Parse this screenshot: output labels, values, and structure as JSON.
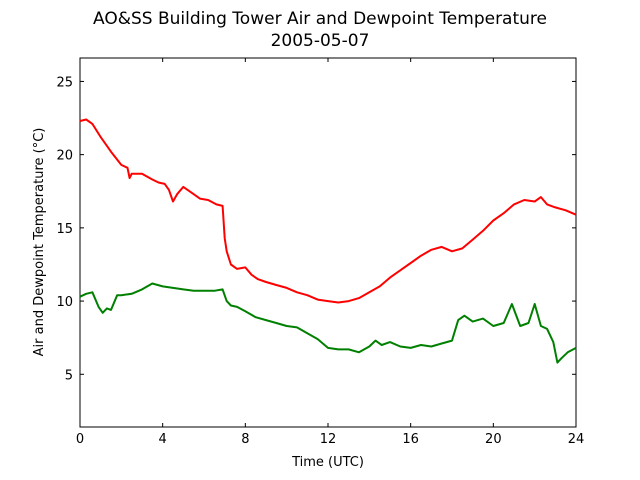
{
  "chart_data": {
    "type": "line",
    "title": "AO&SS Building Tower Air and Dewpoint Temperature",
    "subtitle": "2005-05-07",
    "xlabel": "Time (UTC)",
    "ylabel": "Air and Dewpoint Temperature (°C)",
    "xlim": [
      0,
      24
    ],
    "ylim": [
      1.4,
      26.6
    ],
    "xticks": [
      0,
      4,
      8,
      12,
      16,
      20,
      24
    ],
    "yticks": [
      5,
      10,
      15,
      20,
      25
    ],
    "grid": false,
    "legend": "none",
    "series": [
      {
        "color": "#ff0000",
        "x": [
          0,
          0.3,
          0.6,
          1,
          1.5,
          2,
          2.3,
          2.4,
          2.5,
          3,
          3.5,
          3.8,
          4.1,
          4.3,
          4.5,
          4.7,
          5,
          5.4,
          5.8,
          6.2,
          6.6,
          6.9,
          7.0,
          7.1,
          7.3,
          7.6,
          8,
          8.3,
          8.6,
          9,
          9.5,
          10,
          10.5,
          11,
          11.5,
          12,
          12.5,
          13,
          13.5,
          14,
          14.5,
          15,
          15.5,
          16,
          16.5,
          17,
          17.5,
          18,
          18.5,
          19,
          19.5,
          20,
          20.5,
          21,
          21.5,
          22,
          22.3,
          22.6,
          23,
          23.5,
          24
        ],
        "values": [
          22.3,
          22.4,
          22.1,
          21.2,
          20.2,
          19.3,
          19.1,
          18.4,
          18.7,
          18.7,
          18.3,
          18.1,
          18.0,
          17.6,
          16.8,
          17.3,
          17.8,
          17.4,
          17.0,
          16.9,
          16.6,
          16.5,
          14.3,
          13.4,
          12.5,
          12.2,
          12.3,
          11.8,
          11.5,
          11.3,
          11.1,
          10.9,
          10.6,
          10.4,
          10.1,
          10.0,
          9.9,
          10.0,
          10.2,
          10.6,
          11.0,
          11.6,
          12.1,
          12.6,
          13.1,
          13.5,
          13.7,
          13.4,
          13.6,
          14.2,
          14.8,
          15.5,
          16.0,
          16.6,
          16.9,
          16.8,
          17.1,
          16.6,
          16.4,
          16.2,
          15.9
        ]
      },
      {
        "color": "#008000",
        "x": [
          0,
          0.3,
          0.6,
          0.9,
          1.1,
          1.3,
          1.5,
          1.8,
          2,
          2.5,
          3,
          3.5,
          4,
          4.5,
          5,
          5.5,
          6,
          6.5,
          6.9,
          7.1,
          7.3,
          7.6,
          8,
          8.5,
          9,
          9.5,
          10,
          10.5,
          11,
          11.5,
          12,
          12.5,
          13,
          13.5,
          14,
          14.3,
          14.6,
          15,
          15.5,
          16,
          16.5,
          17,
          17.5,
          18,
          18.3,
          18.6,
          19,
          19.5,
          20,
          20.5,
          20.9,
          21.3,
          21.7,
          22,
          22.3,
          22.6,
          22.9,
          23.1,
          23.3,
          23.6,
          24
        ],
        "values": [
          10.3,
          10.5,
          10.6,
          9.6,
          9.2,
          9.5,
          9.4,
          10.4,
          10.4,
          10.5,
          10.8,
          11.2,
          11.0,
          10.9,
          10.8,
          10.7,
          10.7,
          10.7,
          10.8,
          10.0,
          9.7,
          9.6,
          9.3,
          8.9,
          8.7,
          8.5,
          8.3,
          8.2,
          7.8,
          7.4,
          6.8,
          6.7,
          6.7,
          6.5,
          6.9,
          7.3,
          7.0,
          7.2,
          6.9,
          6.8,
          7.0,
          6.9,
          7.1,
          7.3,
          8.7,
          9.0,
          8.6,
          8.8,
          8.3,
          8.5,
          9.8,
          8.3,
          8.5,
          9.8,
          8.3,
          8.1,
          7.2,
          5.8,
          6.1,
          6.5,
          6.8
        ]
      }
    ]
  }
}
